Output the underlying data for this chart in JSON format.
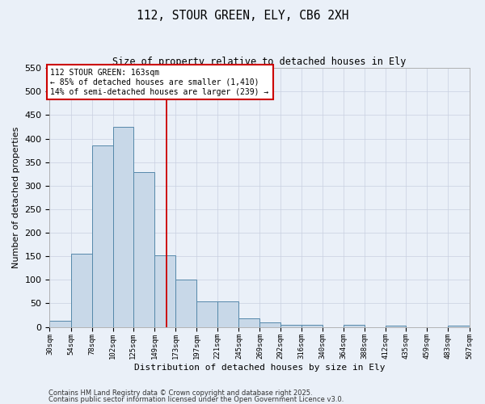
{
  "title": "112, STOUR GREEN, ELY, CB6 2XH",
  "subtitle": "Size of property relative to detached houses in Ely",
  "xlabel": "Distribution of detached houses by size in Ely",
  "ylabel": "Number of detached properties",
  "bar_color": "#c8d8e8",
  "bar_edge_color": "#5588aa",
  "bins": [
    30,
    54,
    78,
    102,
    125,
    149,
    173,
    197,
    221,
    245,
    269,
    292,
    316,
    340,
    364,
    388,
    412,
    435,
    459,
    483,
    507
  ],
  "bin_labels": [
    "30sqm",
    "54sqm",
    "78sqm",
    "102sqm",
    "125sqm",
    "149sqm",
    "173sqm",
    "197sqm",
    "221sqm",
    "245sqm",
    "269sqm",
    "292sqm",
    "316sqm",
    "340sqm",
    "364sqm",
    "388sqm",
    "412sqm",
    "435sqm",
    "459sqm",
    "483sqm",
    "507sqm"
  ],
  "values": [
    13,
    155,
    385,
    425,
    328,
    152,
    101,
    55,
    55,
    18,
    10,
    5,
    5,
    0,
    5,
    0,
    2,
    0,
    0,
    2
  ],
  "ylim": [
    0,
    550
  ],
  "yticks": [
    0,
    50,
    100,
    150,
    200,
    250,
    300,
    350,
    400,
    450,
    500,
    550
  ],
  "property_line_x": 163,
  "annotation_title": "112 STOUR GREEN: 163sqm",
  "annotation_line1": "← 85% of detached houses are smaller (1,410)",
  "annotation_line2": "14% of semi-detached houses are larger (239) →",
  "footnote1": "Contains HM Land Registry data © Crown copyright and database right 2025.",
  "footnote2": "Contains public sector information licensed under the Open Government Licence v3.0.",
  "background_color": "#eaf0f8",
  "grid_color": "#c8d0e0",
  "annotation_box_color": "#ffffff",
  "annotation_box_edge": "#cc0000",
  "red_line_color": "#cc0000"
}
